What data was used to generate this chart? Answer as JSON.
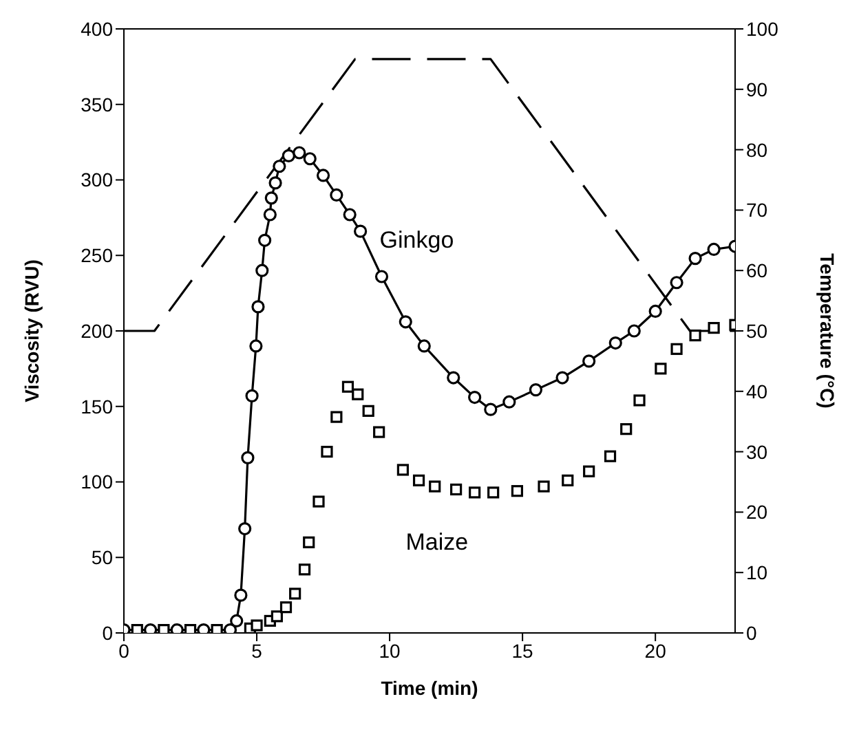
{
  "chart_data": {
    "type": "line",
    "xlabel": "Time (min)",
    "ylabel": "Viscosity (RVU)",
    "y2label": "Temperature (°C)",
    "xlim": [
      0,
      23
    ],
    "xticks": [
      0,
      5,
      10,
      15,
      20
    ],
    "ylim": [
      0,
      400
    ],
    "yticks": [
      0,
      50,
      100,
      150,
      200,
      250,
      300,
      350,
      400
    ],
    "y2lim": [
      0,
      100
    ],
    "y2ticks": [
      0,
      10,
      20,
      30,
      40,
      50,
      60,
      70,
      80,
      90,
      100
    ],
    "series": [
      {
        "name": "Ginkgo",
        "color": "#000000",
        "marker": "circle",
        "line_style": "solid",
        "x": [
          0,
          1,
          2,
          3,
          4,
          4.24,
          4.4,
          4.55,
          4.66,
          4.82,
          4.97,
          5.05,
          5.2,
          5.3,
          5.5,
          5.55,
          5.7,
          5.85,
          6.2,
          6.6,
          7,
          7.5,
          8,
          8.5,
          8.9,
          9.7,
          10.6,
          11.3,
          12.4,
          13.2,
          13.8,
          14.5,
          15.5,
          16.5,
          17.5,
          18.5,
          19.2,
          20,
          20.8,
          21.5,
          22.2,
          23
        ],
        "values": [
          2,
          2,
          2,
          2,
          2,
          8,
          25,
          69,
          116,
          157,
          190,
          216,
          240,
          260,
          277,
          288,
          298,
          309,
          316,
          318,
          314,
          303,
          290,
          277,
          266,
          236,
          206,
          190,
          169,
          156,
          148,
          153,
          161,
          169,
          180,
          192,
          200,
          213,
          232,
          248,
          254,
          256
        ]
      },
      {
        "name": "Maize",
        "type": "scatter",
        "color": "#000000",
        "marker": "square",
        "x": [
          0.5,
          1.5,
          2.5,
          3.5,
          4.75,
          5,
          5.5,
          5.76,
          6.1,
          6.44,
          6.8,
          6.96,
          7.33,
          7.64,
          8,
          8.43,
          8.8,
          9.2,
          9.6,
          10.5,
          11.1,
          11.7,
          12.5,
          13.2,
          13.9,
          14.8,
          15.8,
          16.7,
          17.5,
          18.3,
          18.9,
          19.4,
          20.2,
          20.8,
          21.5,
          22.2,
          23
        ],
        "values": [
          2,
          2,
          2,
          2,
          3,
          5,
          8,
          11,
          17,
          26,
          42,
          60,
          87,
          120,
          143,
          163,
          158,
          147,
          133,
          108,
          101,
          97,
          95,
          93,
          93,
          94,
          97,
          101,
          107,
          117,
          135,
          154,
          175,
          188,
          197,
          202,
          204
        ]
      },
      {
        "type": "line",
        "axis": "y2",
        "color": "#000000",
        "marker": "none",
        "line_style": "dashed",
        "x": [
          0,
          1.15,
          8.7,
          13.8,
          21.3,
          23
        ],
        "values": [
          50,
          50,
          95,
          95,
          50,
          50
        ]
      }
    ]
  }
}
